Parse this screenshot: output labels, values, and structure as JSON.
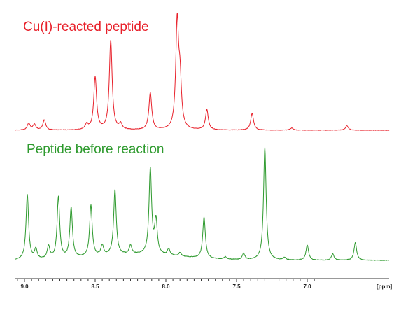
{
  "chart_data": {
    "type": "line",
    "xlabel": "[ppm]",
    "x_range": [
      9.05,
      6.95
    ],
    "x_reversed": true,
    "grid": false,
    "legend": "none",
    "x_ticks": [
      {
        "value": 9.0,
        "label": "9.0"
      },
      {
        "value": 8.5,
        "label": "8.5"
      },
      {
        "value": 8.0,
        "label": "8.0"
      },
      {
        "value": 7.5,
        "label": "7.5"
      },
      {
        "value": 7.0,
        "label": "7.0"
      }
    ],
    "series": [
      {
        "name": "Cu(I)-reacted peptide",
        "color": "#e8202a",
        "peaks": [
          {
            "ppm": 8.97,
            "height": 0.06
          },
          {
            "ppm": 8.93,
            "height": 0.05
          },
          {
            "ppm": 8.86,
            "height": 0.09
          },
          {
            "ppm": 8.56,
            "height": 0.05
          },
          {
            "ppm": 8.5,
            "height": 0.47
          },
          {
            "ppm": 8.39,
            "height": 0.8
          },
          {
            "ppm": 8.32,
            "height": 0.05
          },
          {
            "ppm": 8.11,
            "height": 0.33
          },
          {
            "ppm": 7.92,
            "height": 0.94
          },
          {
            "ppm": 7.9,
            "height": 0.4
          },
          {
            "ppm": 7.71,
            "height": 0.18
          },
          {
            "ppm": 7.39,
            "height": 0.15
          },
          {
            "ppm": 7.11,
            "height": 0.02
          },
          {
            "ppm": 6.72,
            "height": 0.04
          }
        ]
      },
      {
        "name": "Peptide before reaction",
        "color": "#2e9a2e",
        "peaks": [
          {
            "ppm": 8.98,
            "height": 0.52
          },
          {
            "ppm": 8.92,
            "height": 0.08
          },
          {
            "ppm": 8.83,
            "height": 0.1
          },
          {
            "ppm": 8.76,
            "height": 0.49
          },
          {
            "ppm": 8.67,
            "height": 0.4
          },
          {
            "ppm": 8.53,
            "height": 0.41
          },
          {
            "ppm": 8.45,
            "height": 0.08
          },
          {
            "ppm": 8.36,
            "height": 0.52
          },
          {
            "ppm": 8.25,
            "height": 0.07
          },
          {
            "ppm": 8.11,
            "height": 0.68
          },
          {
            "ppm": 8.07,
            "height": 0.27
          },
          {
            "ppm": 7.98,
            "height": 0.05
          },
          {
            "ppm": 7.9,
            "height": 0.03
          },
          {
            "ppm": 7.73,
            "height": 0.33
          },
          {
            "ppm": 7.58,
            "height": 0.02
          },
          {
            "ppm": 7.45,
            "height": 0.05
          },
          {
            "ppm": 7.3,
            "height": 0.9
          },
          {
            "ppm": 7.16,
            "height": 0.02
          },
          {
            "ppm": 7.0,
            "height": 0.12
          },
          {
            "ppm": 6.82,
            "height": 0.05
          },
          {
            "ppm": 6.66,
            "height": 0.14
          }
        ]
      }
    ]
  }
}
